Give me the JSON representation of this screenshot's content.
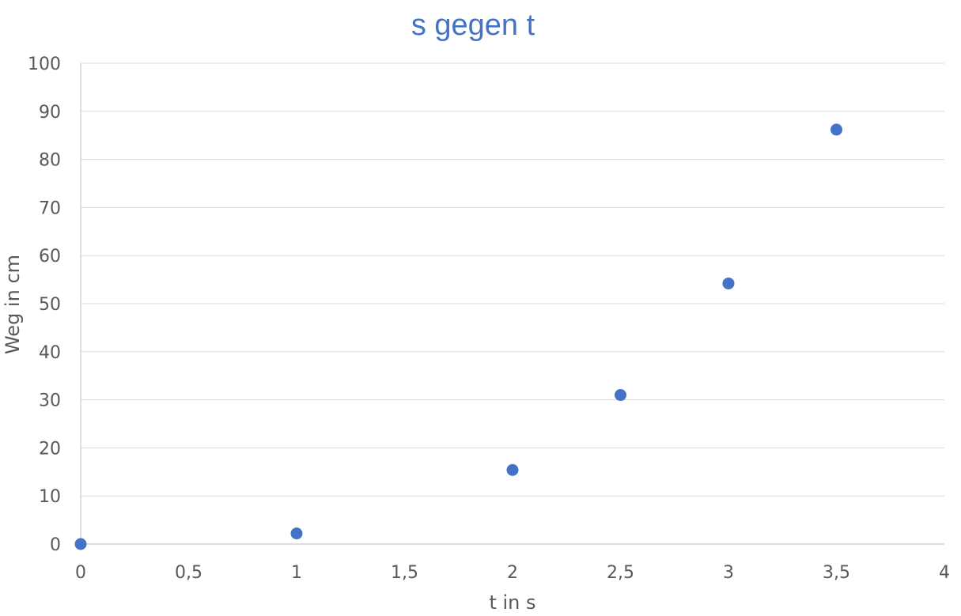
{
  "chart_data": {
    "type": "scatter",
    "title": "s gegen t",
    "xlabel": "t in s",
    "ylabel": "Weg in cm",
    "xlim": [
      0,
      4
    ],
    "ylim": [
      0,
      100
    ],
    "x_ticks": [
      "0",
      "0,5",
      "1",
      "1,5",
      "2",
      "2,5",
      "3",
      "3,5",
      "4"
    ],
    "y_ticks": [
      "0",
      "10",
      "20",
      "30",
      "40",
      "50",
      "60",
      "70",
      "80",
      "90",
      "100"
    ],
    "grid": "horizontal",
    "legend": "none",
    "marker_color": "#4472c4",
    "series": [
      {
        "x": [
          0,
          1,
          2,
          2.5,
          3,
          3.5
        ],
        "y": [
          0,
          2.2,
          15.4,
          31,
          54.2,
          86.2
        ]
      }
    ]
  }
}
